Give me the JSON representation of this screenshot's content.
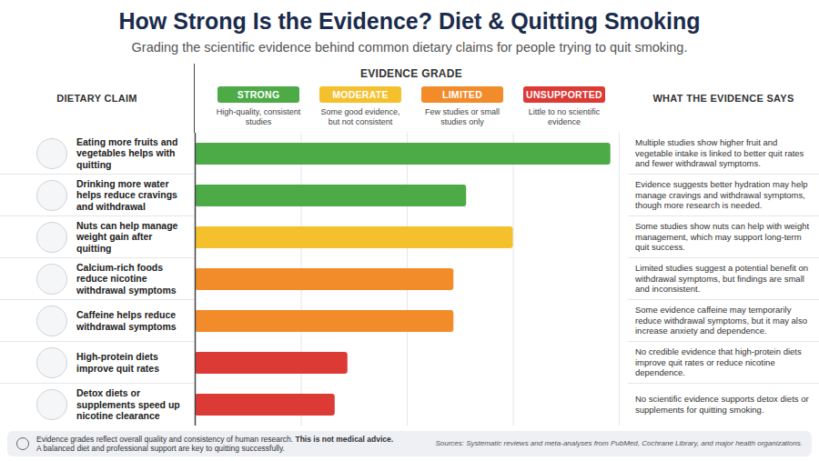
{
  "chart_data": {
    "type": "bar",
    "orientation": "horizontal",
    "title": "How Strong Is the Evidence? Diet & Quitting Smoking",
    "subtitle": "Grading the scientific evidence behind common dietary claims for people trying to quit smoking.",
    "category_header": "DIETARY CLAIM",
    "evidence_header": "WHAT THE EVIDENCE SAYS",
    "categories": [
      "Eating more fruits and vegetables helps with quitting",
      "Drinking more water helps reduce cravings and withdrawal",
      "Nuts can help manage weight gain after quitting",
      "Calcium-rich foods reduce nicotine withdrawal symptoms",
      "Caffeine helps reduce withdrawal symptoms",
      "High-protein diets improve quit rates",
      "Detox diets or supplements speed up nicotine clearance"
    ],
    "values": [
      98,
      64,
      75,
      61,
      61,
      36,
      33
    ],
    "colors": [
      "#4caa47",
      "#4caa47",
      "#f4c02c",
      "#f28b2a",
      "#f28b2a",
      "#dc3a34",
      "#dc3a34"
    ],
    "evidence": [
      "Multiple studies show higher fruit and vegetable intake is linked to better quit rates and fewer withdrawal symptoms.",
      "Evidence suggests better hydration may help manage cravings and withdrawal symptoms, though more research is needed.",
      "Some studies show nuts can help with weight management, which may support long-term quit success.",
      "Limited studies suggest a potential benefit on withdrawal symptoms, but findings are small and inconsistent.",
      "Some evidence caffeine may temporarily reduce withdrawal symptoms, but it may also increase anxiety and dependence.",
      "No credible evidence that high-protein diets improve quit rates or reduce nicotine dependence.",
      "No scientific evidence supports detox diets or supplements for quitting smoking."
    ],
    "xlim": [
      0,
      100
    ],
    "xticks": [
      0,
      25,
      50,
      75,
      100
    ],
    "grid": true,
    "tick_labels": false,
    "legend": "top",
    "grades": {
      "title": "EVIDENCE GRADE",
      "items": [
        {
          "name": "STRONG",
          "color": "#4caa47",
          "description": "High-quality, consistent studies"
        },
        {
          "name": "MODERATE",
          "color": "#f4c02c",
          "description": "Some good evidence, but not consistent"
        },
        {
          "name": "LIMITED",
          "color": "#f28b2a",
          "description": "Few studies or small studies only"
        },
        {
          "name": "UNSUPPORTED",
          "color": "#dc3a34",
          "description": "Little to no scientific evidence"
        }
      ]
    },
    "footnote": {
      "lines": [
        "Evidence grades reflect overall quality and consistency of human research. This is not medical advice.",
        "A balanced diet and professional support are key to quitting successfully."
      ],
      "emphasis": "This is not medical advice."
    },
    "sources": "Sources: Systematic reviews and meta-analyses from PubMed, Cochrane Library, and major health organizations."
  }
}
